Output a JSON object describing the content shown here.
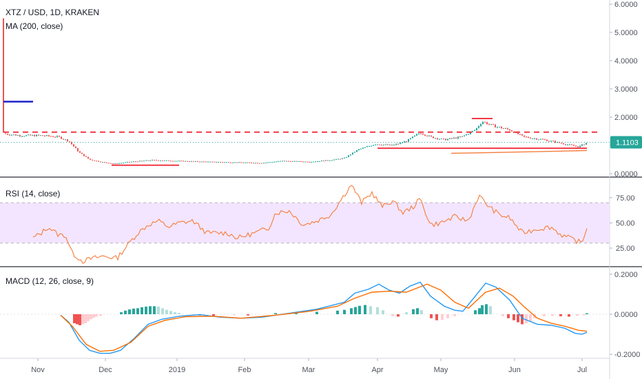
{
  "header": {
    "symbol": "XTZ / USD, 1D, KRAKEN",
    "ma_label": "MA (200, close)"
  },
  "panes": {
    "rsi_label": "RSI (14, close)",
    "macd_label": "MACD (12, 26, close, 9)"
  },
  "colors": {
    "up": "#26a69a",
    "down": "#ef5350",
    "rsi_line": "#f57c3a",
    "rsi_band": "#f3e5ff",
    "macd_line": "#2196f3",
    "signal_line": "#ff6d00",
    "drawing_red": "#f23645",
    "drawing_blue": "#1e22c8",
    "last_price_bg": "#26a69a"
  },
  "chart_data": [
    {
      "type": "candlestick",
      "title": "XTZ / USD, 1D, KRAKEN",
      "y_ticks": [
        "6.0000",
        "5.0000",
        "4.0000",
        "3.0000",
        "2.0000",
        "1.0000",
        "0.0000"
      ],
      "y_range": [
        0,
        6
      ],
      "last_price_label": "1.1103",
      "last_price": 1.1103,
      "x_ticks": [
        "Nov",
        "Dec",
        "2019",
        "Feb",
        "Mar",
        "Apr",
        "May",
        "Jun",
        "Jul"
      ],
      "price_profile": [
        [
          0,
          1.45
        ],
        [
          10,
          1.4
        ],
        [
          30,
          1.35
        ],
        [
          60,
          1.35
        ],
        [
          85,
          1.3
        ],
        [
          100,
          1.15
        ],
        [
          115,
          0.75
        ],
        [
          130,
          0.5
        ],
        [
          150,
          0.4
        ],
        [
          165,
          0.35
        ],
        [
          190,
          0.42
        ],
        [
          220,
          0.48
        ],
        [
          260,
          0.45
        ],
        [
          300,
          0.42
        ],
        [
          340,
          0.4
        ],
        [
          380,
          0.38
        ],
        [
          410,
          0.45
        ],
        [
          450,
          0.42
        ],
        [
          480,
          0.48
        ],
        [
          500,
          0.55
        ],
        [
          520,
          0.85
        ],
        [
          545,
          1.05
        ],
        [
          570,
          1.0
        ],
        [
          590,
          1.15
        ],
        [
          610,
          1.45
        ],
        [
          625,
          1.3
        ],
        [
          645,
          1.2
        ],
        [
          670,
          1.3
        ],
        [
          690,
          1.55
        ],
        [
          700,
          1.85
        ],
        [
          715,
          1.7
        ],
        [
          740,
          1.55
        ],
        [
          760,
          1.3
        ],
        [
          790,
          1.2
        ],
        [
          820,
          1.05
        ],
        [
          840,
          0.95
        ],
        [
          852,
          1.1
        ]
      ],
      "ma_200": {
        "name": "MA (200, close)",
        "segment": [
          [
            655,
            0.72
          ],
          [
            700,
            0.74
          ],
          [
            760,
            0.77
          ],
          [
            820,
            0.8
          ],
          [
            852,
            0.82
          ]
        ]
      },
      "drawings": [
        {
          "kind": "dashed",
          "value": 1.47
        },
        {
          "kind": "solid",
          "value": 0.9
        },
        {
          "kind": "solid",
          "value": 0.3
        },
        {
          "kind": "solid",
          "value": 1.95
        },
        {
          "kind": "blue",
          "value": 2.55
        }
      ],
      "dotted_last_price": 1.1103,
      "spike_value": 5.5
    },
    {
      "type": "line",
      "title": "RSI (14, close)",
      "y_ticks": [
        "75.00",
        "50.00",
        "25.00"
      ],
      "y_range": [
        10,
        92
      ],
      "band": [
        30,
        70
      ],
      "series": [
        {
          "values": [
            [
              48,
              35
            ],
            [
              60,
              40
            ],
            [
              70,
              46
            ],
            [
              85,
              38
            ],
            [
              95,
              38
            ],
            [
              105,
              20
            ],
            [
              120,
              12
            ],
            [
              135,
              15
            ],
            [
              150,
              17
            ],
            [
              170,
              15
            ],
            [
              185,
              28
            ],
            [
              200,
              40
            ],
            [
              215,
              48
            ],
            [
              230,
              52
            ],
            [
              245,
              46
            ],
            [
              260,
              50
            ],
            [
              280,
              52
            ],
            [
              300,
              40
            ],
            [
              330,
              40
            ],
            [
              345,
              35
            ],
            [
              370,
              40
            ],
            [
              390,
              45
            ],
            [
              400,
              60
            ],
            [
              420,
              62
            ],
            [
              440,
              48
            ],
            [
              460,
              52
            ],
            [
              480,
              58
            ],
            [
              500,
              78
            ],
            [
              510,
              88
            ],
            [
              525,
              70
            ],
            [
              540,
              80
            ],
            [
              555,
              66
            ],
            [
              570,
              72
            ],
            [
              585,
              60
            ],
            [
              600,
              66
            ],
            [
              610,
              74
            ],
            [
              625,
              48
            ],
            [
              640,
              50
            ],
            [
              660,
              56
            ],
            [
              680,
              52
            ],
            [
              695,
              77
            ],
            [
              710,
              66
            ],
            [
              725,
              58
            ],
            [
              740,
              55
            ],
            [
              758,
              40
            ],
            [
              780,
              44
            ],
            [
              800,
              46
            ],
            [
              815,
              38
            ],
            [
              830,
              34
            ],
            [
              845,
              30
            ],
            [
              852,
              46
            ]
          ]
        }
      ]
    },
    {
      "type": "line",
      "title": "MACD (12, 26, close, 9)",
      "y_ticks": [
        "0.2000",
        "0.0000",
        "-0.2000"
      ],
      "y_range": [
        -0.22,
        0.22
      ],
      "series": [
        {
          "role": "macd",
          "values": [
            [
              88,
              -0.005
            ],
            [
              100,
              -0.04
            ],
            [
              115,
              -0.13
            ],
            [
              130,
              -0.18
            ],
            [
              145,
              -0.195
            ],
            [
              160,
              -0.195
            ],
            [
              175,
              -0.18
            ],
            [
              195,
              -0.12
            ],
            [
              215,
              -0.05
            ],
            [
              235,
              -0.025
            ],
            [
              260,
              -0.01
            ],
            [
              290,
              -0.002
            ],
            [
              320,
              -0.015
            ],
            [
              350,
              -0.02
            ],
            [
              380,
              -0.015
            ],
            [
              420,
              0.005
            ],
            [
              460,
              0.025
            ],
            [
              500,
              0.06
            ],
            [
              515,
              0.105
            ],
            [
              535,
              0.125
            ],
            [
              550,
              0.15
            ],
            [
              565,
              0.12
            ],
            [
              580,
              0.105
            ],
            [
              595,
              0.14
            ],
            [
              610,
              0.16
            ],
            [
              625,
              0.09
            ],
            [
              645,
              0.04
            ],
            [
              660,
              0.02
            ],
            [
              672,
              0.015
            ],
            [
              690,
              0.09
            ],
            [
              705,
              0.155
            ],
            [
              720,
              0.135
            ],
            [
              740,
              0.07
            ],
            [
              758,
              -0.02
            ],
            [
              780,
              -0.05
            ],
            [
              800,
              -0.055
            ],
            [
              820,
              -0.07
            ],
            [
              835,
              -0.095
            ],
            [
              845,
              -0.1
            ],
            [
              852,
              -0.09
            ]
          ]
        },
        {
          "role": "signal",
          "values": [
            [
              88,
              -0.005
            ],
            [
              105,
              -0.06
            ],
            [
              125,
              -0.15
            ],
            [
              145,
              -0.185
            ],
            [
              165,
              -0.18
            ],
            [
              190,
              -0.14
            ],
            [
              215,
              -0.06
            ],
            [
              240,
              -0.03
            ],
            [
              270,
              -0.012
            ],
            [
              310,
              -0.01
            ],
            [
              350,
              -0.02
            ],
            [
              400,
              -0.005
            ],
            [
              450,
              0.015
            ],
            [
              490,
              0.04
            ],
            [
              515,
              0.08
            ],
            [
              540,
              0.11
            ],
            [
              565,
              0.115
            ],
            [
              590,
              0.11
            ],
            [
              620,
              0.15
            ],
            [
              640,
              0.12
            ],
            [
              660,
              0.06
            ],
            [
              680,
              0.03
            ],
            [
              705,
              0.11
            ],
            [
              725,
              0.13
            ],
            [
              745,
              0.09
            ],
            [
              760,
              0.04
            ],
            [
              780,
              -0.02
            ],
            [
              800,
              -0.045
            ],
            [
              820,
              -0.06
            ],
            [
              840,
              -0.08
            ],
            [
              852,
              -0.085
            ]
          ]
        }
      ],
      "histogram": [
        [
          108,
          -0.045
        ],
        [
          112,
          -0.05
        ],
        [
          116,
          -0.055
        ],
        [
          120,
          -0.05
        ],
        [
          124,
          -0.045
        ],
        [
          128,
          -0.035
        ],
        [
          132,
          -0.025
        ],
        [
          136,
          -0.018
        ],
        [
          140,
          -0.012
        ],
        [
          146,
          -0.008
        ],
        [
          176,
          0.01
        ],
        [
          182,
          0.018
        ],
        [
          188,
          0.024
        ],
        [
          194,
          0.028
        ],
        [
          200,
          0.03
        ],
        [
          206,
          0.035
        ],
        [
          212,
          0.038
        ],
        [
          218,
          0.04
        ],
        [
          224,
          0.04
        ],
        [
          230,
          0.038
        ],
        [
          236,
          0.03
        ],
        [
          242,
          0.022
        ],
        [
          248,
          0.016
        ],
        [
          254,
          0.01
        ],
        [
          260,
          0.006
        ],
        [
          290,
          -0.006
        ],
        [
          310,
          -0.008
        ],
        [
          340,
          -0.005
        ],
        [
          360,
          -0.006
        ],
        [
          400,
          0.006
        ],
        [
          430,
          0.01
        ],
        [
          460,
          0.012
        ],
        [
          490,
          0.018
        ],
        [
          500,
          0.022
        ],
        [
          510,
          0.03
        ],
        [
          516,
          0.036
        ],
        [
          522,
          0.042
        ],
        [
          530,
          0.046
        ],
        [
          538,
          0.04
        ],
        [
          548,
          0.035
        ],
        [
          556,
          0.02
        ],
        [
          570,
          -0.01
        ],
        [
          578,
          -0.012
        ],
        [
          590,
          0.01
        ],
        [
          600,
          0.025
        ],
        [
          606,
          0.03
        ],
        [
          612,
          0.02
        ],
        [
          626,
          -0.02
        ],
        [
          634,
          -0.03
        ],
        [
          642,
          -0.028
        ],
        [
          650,
          -0.02
        ],
        [
          660,
          -0.01
        ],
        [
          690,
          0.02
        ],
        [
          696,
          0.03
        ],
        [
          700,
          0.045
        ],
        [
          706,
          0.05
        ],
        [
          712,
          0.04
        ],
        [
          730,
          -0.01
        ],
        [
          738,
          -0.02
        ],
        [
          746,
          -0.03
        ],
        [
          752,
          -0.04
        ],
        [
          758,
          -0.05
        ],
        [
          764,
          -0.045
        ],
        [
          770,
          -0.035
        ],
        [
          776,
          -0.02
        ],
        [
          790,
          -0.01
        ],
        [
          802,
          -0.008
        ],
        [
          814,
          -0.01
        ],
        [
          826,
          -0.012
        ],
        [
          838,
          -0.008
        ],
        [
          848,
          -0.005
        ],
        [
          852,
          0.005
        ]
      ]
    }
  ]
}
